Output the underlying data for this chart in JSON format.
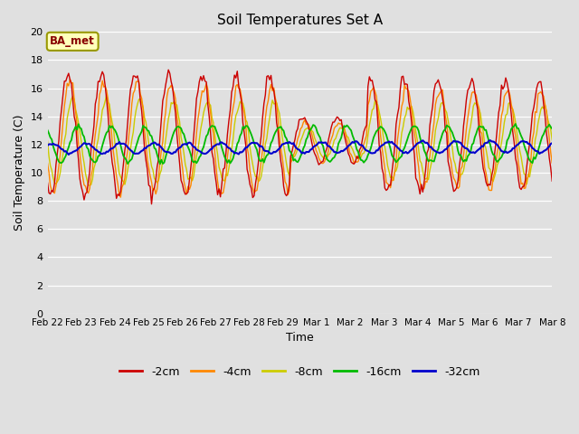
{
  "title": "Soil Temperatures Set A",
  "xlabel": "Time",
  "ylabel": "Soil Temperature (C)",
  "ylim": [
    0,
    20
  ],
  "yticks": [
    0,
    2,
    4,
    6,
    8,
    10,
    12,
    14,
    16,
    18,
    20
  ],
  "annotation": "BA_met",
  "colors": {
    "-2cm": "#cc0000",
    "-4cm": "#ff8800",
    "-8cm": "#cccc00",
    "-16cm": "#00bb00",
    "-32cm": "#0000cc"
  },
  "legend_labels": [
    "-2cm",
    "-4cm",
    "-8cm",
    "-16cm",
    "-32cm"
  ],
  "bg_color": "#e0e0e0",
  "plot_bg_color": "#e0e0e0",
  "x_labels": [
    "Feb 22",
    "Feb 23",
    "Feb 24",
    "Feb 25",
    "Feb 26",
    "Feb 27",
    "Feb 28",
    "Feb 29",
    "Mar 1",
    "Mar 2",
    "Mar 3",
    "Mar 4",
    "Mar 5",
    "Mar 6",
    "Mar 7",
    "Mar 8"
  ],
  "figsize": [
    6.4,
    4.8
  ],
  "dpi": 100
}
